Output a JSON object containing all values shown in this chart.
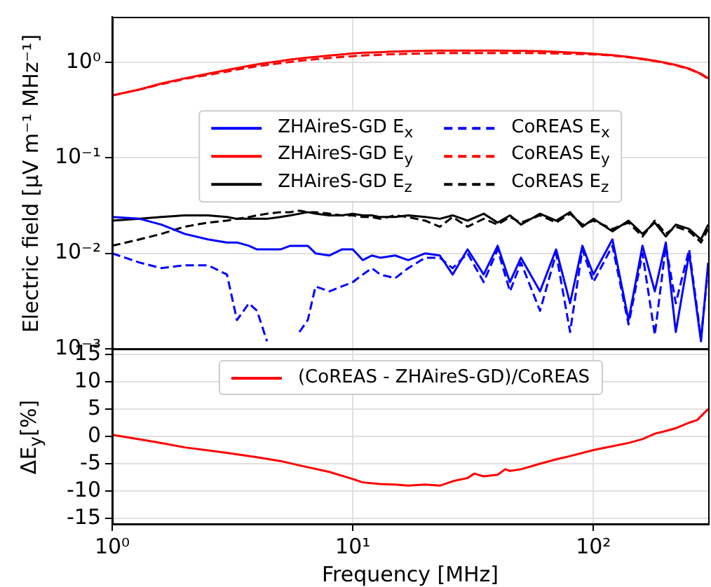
{
  "chart_data": [
    {
      "type": "line",
      "ylabel": "Electric field [μV m⁻¹ MHz⁻¹]",
      "log": "xy",
      "grid": true,
      "legend": "center",
      "tick_labels": "y",
      "xlim": [
        1,
        300
      ],
      "xticks": [
        {
          "value": 1,
          "label": null
        },
        {
          "value": 10,
          "label": null
        },
        {
          "value": 100,
          "label": null
        }
      ],
      "ylim": [
        0.001,
        3
      ],
      "yticks": [
        {
          "value": 0.001,
          "label": "10⁻³"
        },
        {
          "value": 0.01,
          "label": "10⁻²"
        },
        {
          "value": 0.1,
          "label": "10⁻¹"
        },
        {
          "value": 1,
          "label": "10⁰"
        }
      ],
      "x": [
        1,
        1.3,
        1.6,
        2,
        2.5,
        3,
        3.3,
        3.7,
        4,
        4.4,
        5,
        5.5,
        6,
        6.5,
        7,
        8,
        9,
        10,
        11,
        12,
        13,
        15,
        17,
        20,
        23,
        26,
        30,
        35,
        40,
        45,
        50,
        60,
        70,
        80,
        90,
        100,
        120,
        140,
        160,
        180,
        200,
        220,
        250,
        280,
        300
      ],
      "series": [
        {
          "name": "ZHAireS-GD E$_{x}$",
          "color": "#0000ff",
          "line_style": "solid",
          "values": [
            0.024,
            0.023,
            0.02,
            0.016,
            0.014,
            0.013,
            0.013,
            0.012,
            0.011,
            0.011,
            0.011,
            0.012,
            0.012,
            0.012,
            0.01,
            0.0095,
            0.011,
            0.011,
            0.0085,
            0.0095,
            0.009,
            0.0095,
            0.0085,
            0.01,
            0.0095,
            0.006,
            0.011,
            0.006,
            0.012,
            0.005,
            0.009,
            0.004,
            0.011,
            0.003,
            0.012,
            0.006,
            0.014,
            0.002,
            0.012,
            0.004,
            0.013,
            0.0015,
            0.01,
            0.0012,
            0.008
          ]
        },
        {
          "name": "ZHAireS-GD E$_{y}$",
          "color": "#ff0000",
          "line_style": "solid",
          "values": [
            0.45,
            0.52,
            0.6,
            0.68,
            0.76,
            0.83,
            0.87,
            0.92,
            0.95,
            0.99,
            1.03,
            1.07,
            1.1,
            1.12,
            1.14,
            1.18,
            1.21,
            1.24,
            1.26,
            1.27,
            1.28,
            1.3,
            1.31,
            1.32,
            1.33,
            1.33,
            1.33,
            1.33,
            1.33,
            1.32,
            1.32,
            1.31,
            1.29,
            1.27,
            1.25,
            1.23,
            1.19,
            1.14,
            1.09,
            1.04,
            0.99,
            0.94,
            0.86,
            0.76,
            0.68
          ]
        },
        {
          "name": "ZHAireS-GD E$_{z}$",
          "color": "#000000",
          "line_style": "solid",
          "values": [
            0.022,
            0.023,
            0.024,
            0.025,
            0.025,
            0.024,
            0.023,
            0.023,
            0.023,
            0.023,
            0.024,
            0.025,
            0.026,
            0.027,
            0.026,
            0.025,
            0.025,
            0.026,
            0.025,
            0.025,
            0.024,
            0.024,
            0.025,
            0.024,
            0.023,
            0.025,
            0.022,
            0.026,
            0.021,
            0.025,
            0.02,
            0.026,
            0.022,
            0.027,
            0.019,
            0.023,
            0.017,
            0.022,
            0.016,
            0.021,
            0.015,
            0.02,
            0.018,
            0.014,
            0.02
          ]
        },
        {
          "name": "CoREAS E$_{x}$",
          "color": "#0000ff",
          "line_style": "dashed",
          "values": [
            0.01,
            0.008,
            0.007,
            0.0075,
            0.0075,
            0.006,
            0.002,
            0.003,
            0.0025,
            0.0012,
            null,
            null,
            0.0015,
            0.002,
            0.0045,
            0.004,
            0.0045,
            0.005,
            0.006,
            0.007,
            0.006,
            0.0055,
            0.007,
            0.009,
            0.009,
            0.007,
            0.01,
            0.005,
            0.011,
            0.004,
            0.008,
            0.0025,
            0.01,
            0.0015,
            0.011,
            0.005,
            0.012,
            0.0018,
            0.01,
            0.0014,
            0.012,
            0.003,
            0.011,
            0.0013,
            0.007
          ]
        },
        {
          "name": "CoREAS E$_{y}$",
          "color": "#ff0000",
          "line_style": "dashed",
          "values": [
            0.45,
            0.52,
            0.59,
            0.67,
            0.74,
            0.8,
            0.84,
            0.88,
            0.91,
            0.94,
            0.98,
            1.01,
            1.04,
            1.06,
            1.08,
            1.11,
            1.14,
            1.16,
            1.18,
            1.19,
            1.2,
            1.22,
            1.23,
            1.24,
            1.25,
            1.25,
            1.25,
            1.25,
            1.25,
            1.25,
            1.25,
            1.25,
            1.24,
            1.23,
            1.22,
            1.21,
            1.18,
            1.13,
            1.08,
            1.03,
            0.98,
            0.93,
            0.85,
            0.75,
            0.67
          ]
        },
        {
          "name": "CoREAS E$_{z}$",
          "color": "#000000",
          "line_style": "dashed",
          "values": [
            0.012,
            0.014,
            0.016,
            0.019,
            0.021,
            0.022,
            0.023,
            0.024,
            0.025,
            0.026,
            0.027,
            0.027,
            0.028,
            0.027,
            0.027,
            0.026,
            0.025,
            0.025,
            0.024,
            0.024,
            0.023,
            0.025,
            0.024,
            0.022,
            0.019,
            0.024,
            0.019,
            0.023,
            0.02,
            0.024,
            0.021,
            0.025,
            0.021,
            0.026,
            0.02,
            0.022,
            0.018,
            0.021,
            0.015,
            0.022,
            0.016,
            0.019,
            0.017,
            0.013,
            0.018
          ]
        }
      ]
    },
    {
      "type": "line",
      "xlabel": "Frequency [MHz]",
      "ylabel": "ΔE$_{y}$[%]",
      "log": "x",
      "grid": true,
      "legend": "top",
      "xlim": [
        1,
        300
      ],
      "xticks": [
        {
          "value": 1,
          "label": "10⁰"
        },
        {
          "value": 10,
          "label": "10¹"
        },
        {
          "value": 100,
          "label": "10²"
        }
      ],
      "ylim": [
        -16,
        16
      ],
      "yticks": [
        -15,
        -10,
        -5,
        0,
        5,
        10,
        15
      ],
      "x": [
        1,
        1.5,
        2,
        3,
        4,
        5,
        6,
        8,
        10,
        11,
        13,
        15,
        17,
        20,
        23,
        26,
        30,
        32,
        35,
        40,
        43,
        45,
        50,
        60,
        70,
        80,
        100,
        120,
        140,
        160,
        180,
        200,
        220,
        250,
        270,
        300
      ],
      "series": [
        {
          "name": "(CoREAS - ZHAireS-GD)/CoREAS",
          "color": "#ff0000",
          "line_style": "solid",
          "values": [
            0.3,
            -1,
            -2,
            -3,
            -3.8,
            -4.5,
            -5.3,
            -6.5,
            -7.8,
            -8.4,
            -8.7,
            -8.8,
            -9,
            -8.8,
            -9,
            -8.2,
            -7.6,
            -6.8,
            -7.3,
            -7,
            -6,
            -6.3,
            -6,
            -5,
            -4.2,
            -3.6,
            -2.5,
            -1.8,
            -1.2,
            -0.5,
            0.5,
            1,
            1.5,
            2.5,
            3,
            5
          ]
        }
      ]
    }
  ]
}
